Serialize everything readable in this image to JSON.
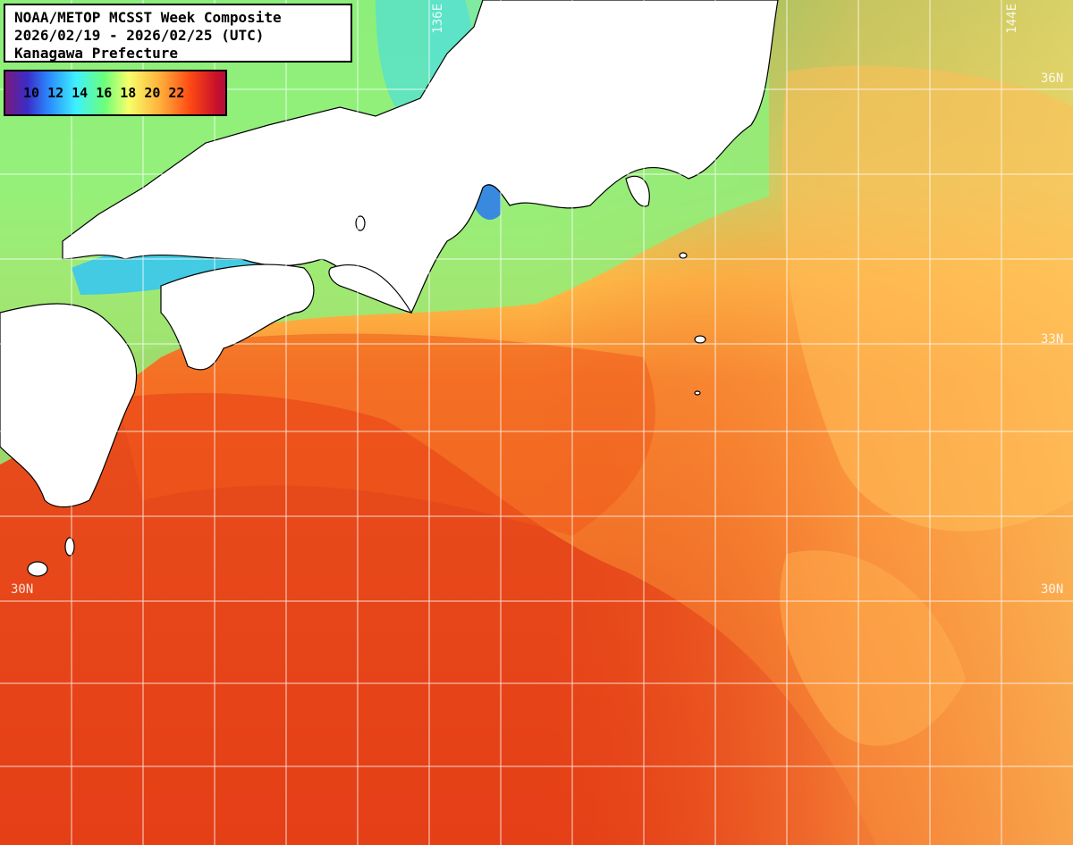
{
  "title": {
    "line1": "NOAA/METOP MCSST Week Composite",
    "line2": "2026/02/19 - 2026/02/25 (UTC)",
    "line3": "Kanagawa Prefecture"
  },
  "legend": {
    "labels": [
      "10",
      "12",
      "14",
      "16",
      "18",
      "20",
      "22"
    ]
  },
  "grid_labels": {
    "lon_136": "136E",
    "lon_144": "144E",
    "lat_36": "36N",
    "lat_33": "33N",
    "lat_30_left": "30N",
    "lat_30_right": "30N"
  },
  "colors": {
    "cold": "#2a8cff",
    "cool": "#6bff7a",
    "mild": "#f6ff6a",
    "warm": "#ffa640",
    "hot": "#e8461a",
    "land": "#ffffff",
    "grid": "#ffffff"
  }
}
